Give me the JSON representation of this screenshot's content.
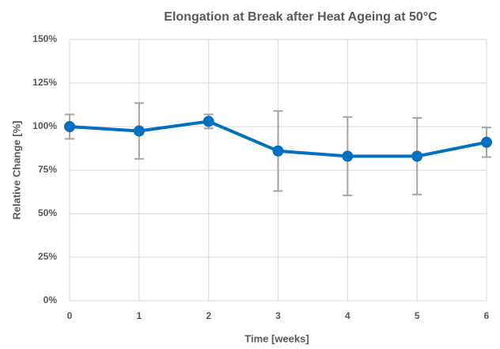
{
  "chart_data": {
    "type": "line",
    "title": "Elongation at Break after Heat Ageing at 50°C",
    "x_label": "Time [weeks]",
    "y_label": "Relative Change [%]",
    "x": [
      0,
      1,
      2,
      3,
      4,
      5,
      6
    ],
    "series": [
      {
        "name": "Elongation at Break",
        "color": "#0070c0",
        "values": [
          100,
          97.5,
          103,
          86,
          83,
          83,
          91
        ],
        "errors": [
          7,
          16,
          4,
          23,
          22.5,
          22,
          8.5
        ],
        "error_color": "#a5a5a5"
      }
    ],
    "xlim": [
      0,
      6
    ],
    "xticks": [
      0,
      1,
      2,
      3,
      4,
      5,
      6
    ],
    "ylim": [
      0,
      150
    ],
    "yticks": [
      {
        "value": 0,
        "label": "0%"
      },
      {
        "value": 25,
        "label": "25%"
      },
      {
        "value": 50,
        "label": "50%"
      },
      {
        "value": 75,
        "label": "75%"
      },
      {
        "value": 100,
        "label": "100%"
      },
      {
        "value": 125,
        "label": "125%"
      },
      {
        "value": 150,
        "label": "150%"
      }
    ],
    "grid": true
  }
}
